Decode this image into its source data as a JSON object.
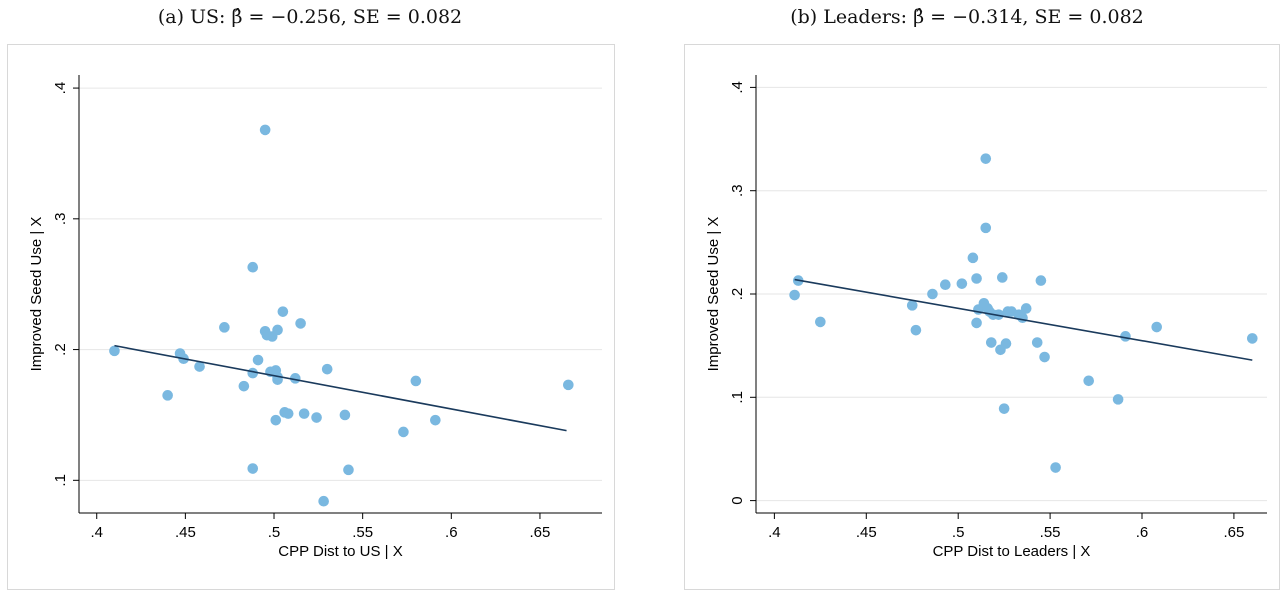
{
  "chart_data": [
    {
      "type": "scatter",
      "title": "(a) US: β̂ = −0.256, SE = 0.082",
      "xlabel": "CPP Dist to US | X",
      "ylabel": "Improved Seed Use | X",
      "xlim": [
        0.39,
        0.685
      ],
      "ylim": [
        0.075,
        0.41
      ],
      "xticks": [
        0.4,
        0.45,
        0.5,
        0.55,
        0.6,
        0.65
      ],
      "xtick_labels": [
        ".4",
        ".45",
        ".5",
        ".55",
        ".6",
        ".65"
      ],
      "yticks": [
        0.1,
        0.2,
        0.3,
        0.4
      ],
      "ytick_labels": [
        ".1",
        ".2",
        ".3",
        ".4"
      ],
      "grid": "horizontal",
      "point_color": "#7ab8e0",
      "line_color": "#1a3a5c",
      "fit_line": {
        "x": [
          0.41,
          0.665
        ],
        "y": [
          0.203,
          0.138
        ]
      },
      "points": [
        {
          "x": 0.41,
          "y": 0.199
        },
        {
          "x": 0.44,
          "y": 0.165
        },
        {
          "x": 0.447,
          "y": 0.197
        },
        {
          "x": 0.449,
          "y": 0.193
        },
        {
          "x": 0.458,
          "y": 0.187
        },
        {
          "x": 0.472,
          "y": 0.217
        },
        {
          "x": 0.483,
          "y": 0.172
        },
        {
          "x": 0.488,
          "y": 0.263
        },
        {
          "x": 0.488,
          "y": 0.182
        },
        {
          "x": 0.488,
          "y": 0.109
        },
        {
          "x": 0.491,
          "y": 0.192
        },
        {
          "x": 0.495,
          "y": 0.368
        },
        {
          "x": 0.495,
          "y": 0.214
        },
        {
          "x": 0.496,
          "y": 0.211
        },
        {
          "x": 0.498,
          "y": 0.183
        },
        {
          "x": 0.499,
          "y": 0.21
        },
        {
          "x": 0.501,
          "y": 0.184
        },
        {
          "x": 0.501,
          "y": 0.146
        },
        {
          "x": 0.502,
          "y": 0.179
        },
        {
          "x": 0.502,
          "y": 0.215
        },
        {
          "x": 0.502,
          "y": 0.177
        },
        {
          "x": 0.505,
          "y": 0.229
        },
        {
          "x": 0.506,
          "y": 0.152
        },
        {
          "x": 0.508,
          "y": 0.151
        },
        {
          "x": 0.512,
          "y": 0.178
        },
        {
          "x": 0.515,
          "y": 0.22
        },
        {
          "x": 0.517,
          "y": 0.151
        },
        {
          "x": 0.524,
          "y": 0.148
        },
        {
          "x": 0.528,
          "y": 0.084
        },
        {
          "x": 0.53,
          "y": 0.185
        },
        {
          "x": 0.54,
          "y": 0.15
        },
        {
          "x": 0.542,
          "y": 0.108
        },
        {
          "x": 0.573,
          "y": 0.137
        },
        {
          "x": 0.58,
          "y": 0.176
        },
        {
          "x": 0.591,
          "y": 0.146
        },
        {
          "x": 0.666,
          "y": 0.173
        }
      ]
    },
    {
      "type": "scatter",
      "title": "(b) Leaders: β̂ = −0.314, SE = 0.082",
      "xlabel": "CPP Dist to Leaders | X",
      "ylabel": "Improved Seed Use | X",
      "xlim": [
        0.39,
        0.668
      ],
      "ylim": [
        -0.012,
        0.412
      ],
      "xticks": [
        0.4,
        0.45,
        0.5,
        0.55,
        0.6,
        0.65
      ],
      "xtick_labels": [
        ".4",
        ".45",
        ".5",
        ".55",
        ".6",
        ".65"
      ],
      "yticks": [
        0,
        0.1,
        0.2,
        0.3,
        0.4
      ],
      "ytick_labels": [
        "0",
        ".1",
        ".2",
        ".3",
        ".4"
      ],
      "grid": "horizontal",
      "point_color": "#7ab8e0",
      "line_color": "#1a3a5c",
      "fit_line": {
        "x": [
          0.411,
          0.66
        ],
        "y": [
          0.214,
          0.136
        ]
      },
      "points": [
        {
          "x": 0.411,
          "y": 0.199
        },
        {
          "x": 0.413,
          "y": 0.213
        },
        {
          "x": 0.425,
          "y": 0.173
        },
        {
          "x": 0.475,
          "y": 0.189
        },
        {
          "x": 0.477,
          "y": 0.165
        },
        {
          "x": 0.486,
          "y": 0.2
        },
        {
          "x": 0.493,
          "y": 0.209
        },
        {
          "x": 0.502,
          "y": 0.21
        },
        {
          "x": 0.508,
          "y": 0.235
        },
        {
          "x": 0.51,
          "y": 0.172
        },
        {
          "x": 0.51,
          "y": 0.215
        },
        {
          "x": 0.511,
          "y": 0.185
        },
        {
          "x": 0.514,
          "y": 0.191
        },
        {
          "x": 0.515,
          "y": 0.331
        },
        {
          "x": 0.515,
          "y": 0.264
        },
        {
          "x": 0.516,
          "y": 0.186
        },
        {
          "x": 0.517,
          "y": 0.183
        },
        {
          "x": 0.518,
          "y": 0.153
        },
        {
          "x": 0.519,
          "y": 0.18
        },
        {
          "x": 0.522,
          "y": 0.18
        },
        {
          "x": 0.523,
          "y": 0.146
        },
        {
          "x": 0.524,
          "y": 0.216
        },
        {
          "x": 0.525,
          "y": 0.089
        },
        {
          "x": 0.526,
          "y": 0.152
        },
        {
          "x": 0.527,
          "y": 0.183
        },
        {
          "x": 0.529,
          "y": 0.183
        },
        {
          "x": 0.533,
          "y": 0.18
        },
        {
          "x": 0.535,
          "y": 0.177
        },
        {
          "x": 0.537,
          "y": 0.186
        },
        {
          "x": 0.543,
          "y": 0.153
        },
        {
          "x": 0.545,
          "y": 0.213
        },
        {
          "x": 0.547,
          "y": 0.139
        },
        {
          "x": 0.553,
          "y": 0.032
        },
        {
          "x": 0.571,
          "y": 0.116
        },
        {
          "x": 0.587,
          "y": 0.098
        },
        {
          "x": 0.591,
          "y": 0.159
        },
        {
          "x": 0.608,
          "y": 0.168
        },
        {
          "x": 0.66,
          "y": 0.157
        }
      ]
    }
  ]
}
